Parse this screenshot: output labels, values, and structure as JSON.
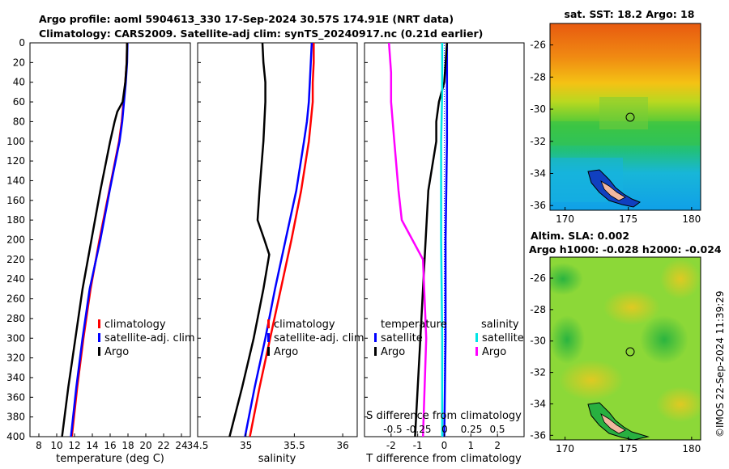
{
  "header": {
    "line1": "Argo profile: aoml 5904613_330 17-Sep-2024 30.57S 174.91E (NRT data)",
    "line2": "Climatology: CARS2009. Satellite-adj clim: synTS_20240917.nc (0.21d earlier)"
  },
  "colors": {
    "climatology": "#ff0000",
    "satellite": "#0000ff",
    "argo": "#000000",
    "s_satellite": "#00e5e5",
    "s_argo": "#ff00ff"
  },
  "chart_data": [
    {
      "type": "line",
      "id": "temperature_profile",
      "xlabel": "temperature (deg C)",
      "ylabel": "",
      "xlim": [
        7,
        25
      ],
      "ylim": [
        400,
        0
      ],
      "xticks": [
        8,
        10,
        12,
        14,
        16,
        18,
        20,
        22,
        24
      ],
      "yticks": [
        0,
        20,
        40,
        60,
        80,
        100,
        120,
        140,
        160,
        180,
        200,
        220,
        240,
        260,
        280,
        300,
        320,
        340,
        360,
        380,
        400
      ],
      "legend": [
        "climatology",
        "satellite-adj. clim",
        "Argo"
      ],
      "series": [
        {
          "name": "climatology",
          "depth": [
            0,
            20,
            40,
            60,
            80,
            100,
            150,
            200,
            250,
            300,
            350,
            400
          ],
          "values": [
            17.9,
            17.85,
            17.7,
            17.5,
            17.3,
            17.0,
            15.9,
            14.8,
            13.8,
            13.0,
            12.3,
            11.7
          ]
        },
        {
          "name": "satellite-adj. clim",
          "depth": [
            0,
            20,
            40,
            60,
            80,
            100,
            150,
            200,
            250,
            300,
            350,
            400
          ],
          "values": [
            17.95,
            17.9,
            17.75,
            17.55,
            17.35,
            17.05,
            15.95,
            14.9,
            13.7,
            12.9,
            12.2,
            11.6
          ]
        },
        {
          "name": "Argo",
          "depth": [
            0,
            20,
            40,
            60,
            70,
            80,
            100,
            150,
            200,
            250,
            300,
            350,
            400
          ],
          "values": [
            17.9,
            17.85,
            17.7,
            17.4,
            16.8,
            16.5,
            16.0,
            14.9,
            13.9,
            12.9,
            12.1,
            11.3,
            10.6
          ]
        }
      ]
    },
    {
      "type": "line",
      "id": "salinity_profile",
      "xlabel": "salinity",
      "xlim": [
        34.5,
        36.15
      ],
      "ylim": [
        400,
        0
      ],
      "xticks": [
        34.5,
        35,
        35.5,
        36
      ],
      "xticklabels": [
        "34.5",
        "35",
        "35.5",
        "36"
      ],
      "legend": [
        "climatology",
        "satellite-adj. clim",
        "Argo"
      ],
      "series": [
        {
          "name": "climatology",
          "depth": [
            0,
            20,
            40,
            60,
            80,
            100,
            150,
            200,
            250,
            300,
            350,
            400
          ],
          "values": [
            35.7,
            35.7,
            35.69,
            35.69,
            35.67,
            35.65,
            35.57,
            35.47,
            35.36,
            35.25,
            35.14,
            35.04
          ]
        },
        {
          "name": "satellite-adj. clim",
          "depth": [
            0,
            20,
            40,
            60,
            80,
            100,
            150,
            200,
            250,
            300,
            350,
            400
          ],
          "values": [
            35.68,
            35.67,
            35.66,
            35.65,
            35.63,
            35.6,
            35.52,
            35.41,
            35.3,
            35.2,
            35.09,
            34.99
          ]
        },
        {
          "name": "Argo",
          "depth": [
            0,
            20,
            40,
            60,
            80,
            100,
            150,
            180,
            200,
            215,
            250,
            300,
            350,
            400
          ],
          "values": [
            35.17,
            35.18,
            35.2,
            35.2,
            35.19,
            35.18,
            35.14,
            35.12,
            35.19,
            35.24,
            35.18,
            35.08,
            34.96,
            34.83
          ]
        }
      ]
    },
    {
      "type": "line",
      "id": "difference_profile",
      "xlabel": "T difference from climatology",
      "xlabel2": "S difference from climatology",
      "xlim": [
        -3,
        3
      ],
      "xticks": [
        -2,
        -1,
        0,
        1,
        2
      ],
      "s_xticks": [
        "-0.5",
        "-0.25",
        "0",
        "0.25",
        "0.5"
      ],
      "legend_temperature": {
        "title": "temperature",
        "entries": [
          "satellite",
          "Argo"
        ]
      },
      "legend_salinity": {
        "title": "salinity",
        "entries": [
          "satellite",
          "Argo"
        ]
      },
      "series": [
        {
          "name": "T satellite",
          "depth": [
            0,
            50,
            100,
            200,
            300,
            400
          ],
          "values": [
            0.1,
            0.1,
            0.1,
            0.05,
            0.05,
            0.0
          ]
        },
        {
          "name": "T Argo",
          "depth": [
            0,
            40,
            60,
            80,
            100,
            150,
            200,
            250,
            300,
            350,
            400
          ],
          "values": [
            0.1,
            0.0,
            -0.2,
            -0.3,
            -0.3,
            -0.6,
            -0.7,
            -0.8,
            -0.9,
            -1.0,
            -1.1
          ]
        },
        {
          "name": "S satellite",
          "depth": [
            0,
            50,
            100,
            200,
            300,
            400
          ],
          "values": [
            -0.02,
            -0.02,
            -0.03,
            -0.03,
            -0.02,
            -0.02
          ]
        },
        {
          "name": "S Argo",
          "depth": [
            0,
            30,
            60,
            100,
            150,
            180,
            200,
            220,
            300,
            400
          ],
          "values": [
            -0.52,
            -0.5,
            -0.5,
            -0.47,
            -0.43,
            -0.4,
            -0.3,
            -0.2,
            -0.17,
            -0.2
          ]
        }
      ]
    }
  ],
  "maps": {
    "sst": {
      "title": "sat. SST: 18.2 Argo: 18",
      "xticks": [
        "170",
        "175",
        "180"
      ],
      "yticks": [
        "-26",
        "-28",
        "-30",
        "-32",
        "-34",
        "-36"
      ]
    },
    "sla": {
      "title1": "Altim. SLA: 0.002",
      "title2": "Argo h1000: -0.028 h2000: -0.024",
      "xticks": [
        "170",
        "175",
        "180"
      ],
      "yticks": [
        "-26",
        "-28",
        "-30",
        "-32",
        "-34",
        "-36"
      ]
    }
  },
  "watermark": "©IMOS 22-Sep-2024 11:39:29"
}
